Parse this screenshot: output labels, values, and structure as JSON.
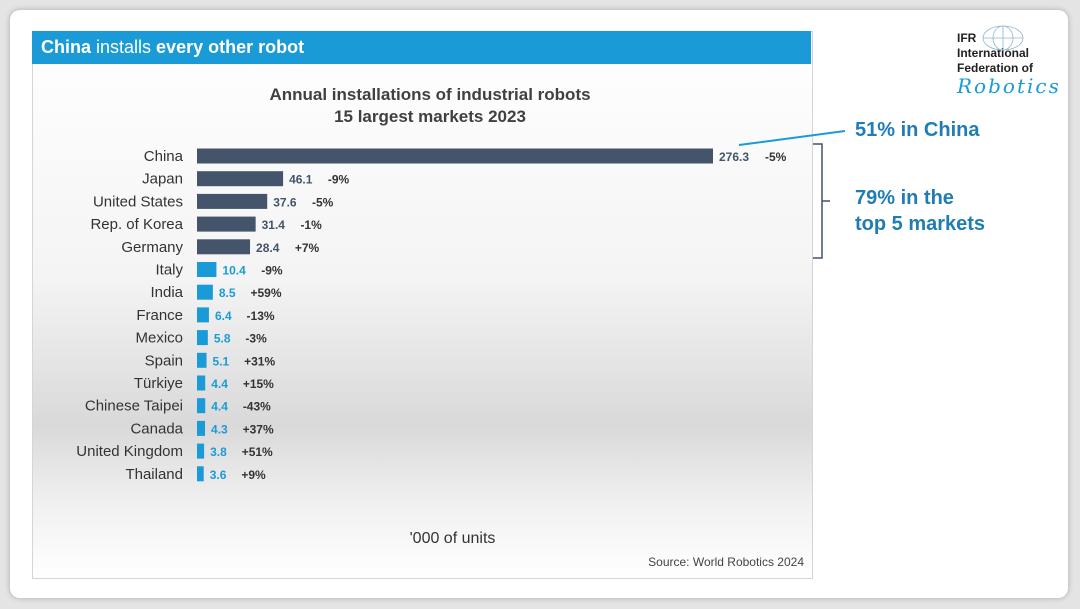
{
  "banner": {
    "bold1": "China",
    "normal": " installs ",
    "bold2": "every other robot"
  },
  "logo": {
    "line1": "IFR",
    "line2": "International",
    "line3": "Federation of",
    "script": "Robotics"
  },
  "callouts": {
    "china_share": "51% in China",
    "top5_line1": "79% in the",
    "top5_line2": "top 5 markets"
  },
  "colors": {
    "banner": "#1a9bd7",
    "dark_bar": "#44546a",
    "light_bar": "#1a9bd7",
    "callout": "#1f7cb5"
  },
  "chart_data": {
    "type": "bar",
    "orientation": "horizontal",
    "title": "Annual installations of industrial robots",
    "subtitle": "15 largest markets 2023",
    "unit_label": "'000 of units",
    "source": "Source: World Robotics 2024",
    "categories": [
      "China",
      "Japan",
      "United States",
      "Rep. of Korea",
      "Germany",
      "Italy",
      "India",
      "France",
      "Mexico",
      "Spain",
      "Türkiye",
      "Chinese Taipei",
      "Canada",
      "United Kingdom",
      "Thailand"
    ],
    "values": [
      276.3,
      46.1,
      37.6,
      31.4,
      28.4,
      10.4,
      8.5,
      6.4,
      5.8,
      5.1,
      4.4,
      4.4,
      4.3,
      3.8,
      3.6
    ],
    "value_labels": [
      "276.3",
      "46.1",
      "37.6",
      "31.4",
      "28.4",
      "10.4",
      "8.5",
      "6.4",
      "5.8",
      "5.1",
      "4.4",
      "4.4",
      "4.3",
      "3.8",
      "3.6"
    ],
    "change_labels": [
      "-5%",
      "-9%",
      "-5%",
      "-1%",
      "+7%",
      "-9%",
      "+59%",
      "-13%",
      "-3%",
      "+31%",
      "+15%",
      "-43%",
      "+37%",
      "+51%",
      "+9%"
    ],
    "highlight_top_n": 5,
    "grid": false
  }
}
